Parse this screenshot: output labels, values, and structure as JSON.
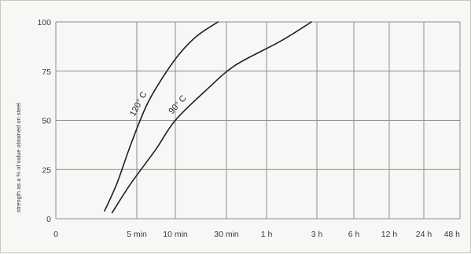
{
  "chart_data": {
    "type": "line",
    "title": "",
    "xlabel": "",
    "ylabel": "strength as a % of value obtained on steel",
    "xscale": "log-time",
    "x_ticks": [
      {
        "label": "0",
        "minutes": 0
      },
      {
        "label": "5 min",
        "minutes": 5
      },
      {
        "label": "10 min",
        "minutes": 10
      },
      {
        "label": "30 min",
        "minutes": 30
      },
      {
        "label": "1 h",
        "minutes": 60
      },
      {
        "label": "3 h",
        "minutes": 180
      },
      {
        "label": "6 h",
        "minutes": 360
      },
      {
        "label": "12 h",
        "minutes": 720
      },
      {
        "label": "24 h",
        "minutes": 1440
      },
      {
        "label": "48 h",
        "minutes": 2880
      }
    ],
    "y_ticks": [
      0,
      25,
      50,
      75,
      100
    ],
    "ylim": [
      0,
      100
    ],
    "grid": true,
    "series": [
      {
        "name": "120° C",
        "points": [
          {
            "minutes": 2.8,
            "value": 4
          },
          {
            "minutes": 3.5,
            "value": 18
          },
          {
            "minutes": 4.5,
            "value": 38
          },
          {
            "minutes": 6,
            "value": 58
          },
          {
            "minutes": 8,
            "value": 72
          },
          {
            "minutes": 11,
            "value": 84
          },
          {
            "minutes": 16,
            "value": 93
          },
          {
            "minutes": 25,
            "value": 100
          }
        ]
      },
      {
        "name": "90° C",
        "points": [
          {
            "minutes": 3.2,
            "value": 3
          },
          {
            "minutes": 4.5,
            "value": 18
          },
          {
            "minutes": 7,
            "value": 35
          },
          {
            "minutes": 10,
            "value": 50
          },
          {
            "minutes": 20,
            "value": 66
          },
          {
            "minutes": 35,
            "value": 78
          },
          {
            "minutes": 80,
            "value": 90
          },
          {
            "minutes": 160,
            "value": 100
          }
        ]
      }
    ],
    "colors": {
      "line": "#1f1f1f",
      "grid": "#8c8c8c",
      "background": "#f7f7f5"
    }
  }
}
